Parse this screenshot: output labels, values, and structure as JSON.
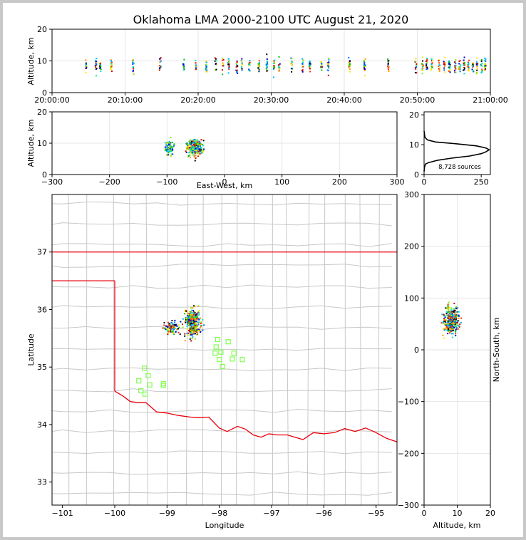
{
  "title": "Oklahoma LMA 2000-2100 UTC August 21, 2020",
  "colors": {
    "border": "#e8000b",
    "county": "#c8c8c8",
    "station": "#7fff4f",
    "axes": "#000000"
  },
  "chart_data": [
    {
      "type": "scatter",
      "panel": "altitude-vs-time",
      "ylabel": "Altitude, km",
      "ylim": [
        0,
        20
      ],
      "yticks": [
        "0",
        "10",
        "20"
      ],
      "xlim": [
        "20:00:00",
        "21:00:00"
      ],
      "xticks": [
        "20:00:00",
        "20:10:00",
        "20:20:00",
        "20:30:00",
        "20:40:00",
        "20:50:00",
        "21:00:00"
      ],
      "flash_times_min": [
        4.7,
        6.0,
        6.6,
        8.1,
        11.1,
        14.8,
        18.0,
        19.7,
        21.1,
        22.4,
        23.4,
        24.2,
        25.3,
        26.0,
        27.0,
        28.3,
        29.4,
        30.4,
        31.1,
        32.8,
        34.3,
        35.3,
        36.9,
        37.8,
        40.7,
        42.8,
        46.0,
        49.8,
        50.7,
        51.3,
        52.0,
        53.0,
        53.7,
        54.4,
        55.2,
        55.8,
        56.4,
        57.0,
        57.6,
        58.2,
        58.8,
        59.3
      ]
    },
    {
      "type": "scatter",
      "panel": "altitude-vs-east-west",
      "xlabel": "East-West, km",
      "ylabel": "Altitude, km",
      "xlim": [
        -300,
        300
      ],
      "xticks": [
        "−300",
        "−200",
        "−100",
        "0",
        "100",
        "200",
        "300"
      ],
      "ylim": [
        0,
        20
      ],
      "yticks": [
        "0",
        "10",
        "20"
      ]
    },
    {
      "type": "line",
      "panel": "altitude-histogram",
      "xlim": [
        0,
        290
      ],
      "xticks": [
        "0",
        "250"
      ],
      "ylim": [
        0,
        21
      ],
      "yticks": [
        "0",
        "10",
        "20"
      ],
      "annotation": "8,728 sources",
      "profile": [
        [
          0,
          1
        ],
        [
          2,
          2.5
        ],
        [
          6,
          3.5
        ],
        [
          20,
          4
        ],
        [
          60,
          4.8
        ],
        [
          120,
          5.5
        ],
        [
          200,
          6.2
        ],
        [
          250,
          7
        ],
        [
          270,
          7.6
        ],
        [
          285,
          8.3
        ],
        [
          270,
          8.9
        ],
        [
          230,
          9.6
        ],
        [
          140,
          10.3
        ],
        [
          50,
          10.9
        ],
        [
          15,
          11.6
        ],
        [
          4,
          12.4
        ],
        [
          2,
          13.5
        ],
        [
          0,
          14.6
        ]
      ]
    },
    {
      "type": "scatter",
      "panel": "plan-view-map",
      "xlabel": "Longitude",
      "ylabel": "Latitude",
      "xlim": [
        -101.2,
        -94.6
      ],
      "ylim": [
        32.6,
        38
      ],
      "xticks": [
        "−101",
        "−100",
        "−99",
        "−98",
        "−97",
        "−96",
        "−95"
      ],
      "yticks": [
        "33",
        "34",
        "35",
        "36",
        "37"
      ],
      "stations": [
        [
          -98.03,
          35.48
        ],
        [
          -97.83,
          35.44
        ],
        [
          -98.06,
          35.35
        ],
        [
          -98.08,
          35.24
        ],
        [
          -97.97,
          35.26
        ],
        [
          -97.72,
          35.24
        ],
        [
          -98.0,
          35.13
        ],
        [
          -97.75,
          35.14
        ],
        [
          -97.56,
          35.13
        ],
        [
          -97.94,
          35.01
        ],
        [
          -99.43,
          34.98
        ],
        [
          -99.36,
          34.85
        ],
        [
          -99.54,
          34.76
        ],
        [
          -99.33,
          34.69
        ],
        [
          -99.07,
          34.71
        ],
        [
          -99.07,
          34.68
        ],
        [
          -99.5,
          34.59
        ],
        [
          -99.42,
          34.53
        ]
      ]
    },
    {
      "type": "scatter",
      "panel": "north-south-vs-altitude",
      "xlabel": "Altitude, km",
      "ylabel": "North-South, km",
      "xlim": [
        0,
        20
      ],
      "xticks": [
        "0",
        "10",
        "20"
      ],
      "ylim": [
        -300,
        300
      ],
      "yticks": [
        "−300",
        "−200",
        "−100",
        "0",
        "100",
        "200",
        "300"
      ]
    }
  ]
}
